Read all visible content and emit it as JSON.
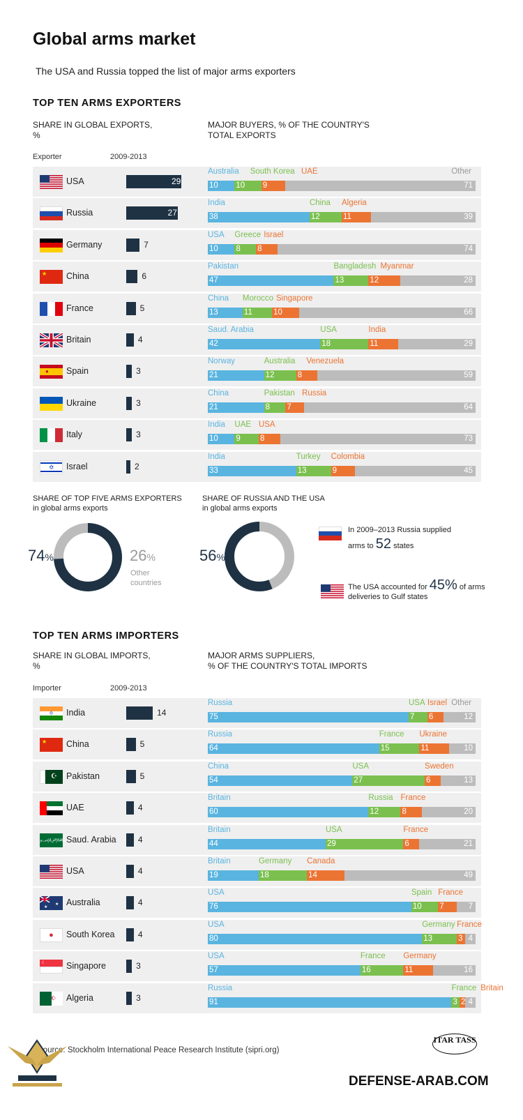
{
  "header": {
    "title": "Global arms market",
    "subtitle": "The USA and Russia topped the list of major arms exporters"
  },
  "exporters": {
    "section_title": "TOP TEN ARMS EXPORTERS",
    "share_head": "SHARE IN GLOBAL EXPORTS,\n%",
    "buyers_head": "MAJOR BUYERS, % OF THE COUNTRY'S\nTOTAL EXPORTS",
    "col_country": "Exporter",
    "col_period": "2009-2013",
    "other_label": "Other",
    "rows": [
      {
        "country": "USA",
        "share": 29,
        "parts": [
          {
            "name": "Australia",
            "v": 10
          },
          {
            "name": "South Korea",
            "v": 10
          },
          {
            "name": "UAE",
            "v": 9
          }
        ],
        "other": 71
      },
      {
        "country": "Russia",
        "share": 27,
        "parts": [
          {
            "name": "India",
            "v": 38
          },
          {
            "name": "China",
            "v": 12
          },
          {
            "name": "Algeria",
            "v": 11
          }
        ],
        "other": 39
      },
      {
        "country": "Germany",
        "share": 7,
        "parts": [
          {
            "name": "USA",
            "v": 10
          },
          {
            "name": "Greece",
            "v": 8
          },
          {
            "name": "Israel",
            "v": 8
          }
        ],
        "other": 74
      },
      {
        "country": "China",
        "share": 6,
        "parts": [
          {
            "name": "Pakistan",
            "v": 47
          },
          {
            "name": "Bangladesh",
            "v": 13
          },
          {
            "name": "Myanmar",
            "v": 12
          }
        ],
        "other": 28
      },
      {
        "country": "France",
        "share": 5,
        "parts": [
          {
            "name": "China",
            "v": 13
          },
          {
            "name": "Morocco",
            "v": 11
          },
          {
            "name": "Singapore",
            "v": 10
          }
        ],
        "other": 66
      },
      {
        "country": "Britain",
        "share": 4,
        "parts": [
          {
            "name": "Saud. Arabia",
            "v": 42
          },
          {
            "name": "USA",
            "v": 18
          },
          {
            "name": "India",
            "v": 11
          }
        ],
        "other": 29
      },
      {
        "country": "Spain",
        "share": 3,
        "parts": [
          {
            "name": "Norway",
            "v": 21
          },
          {
            "name": "Australia",
            "v": 12
          },
          {
            "name": "Venezuela",
            "v": 8
          }
        ],
        "other": 59
      },
      {
        "country": "Ukraine",
        "share": 3,
        "parts": [
          {
            "name": "China",
            "v": 21
          },
          {
            "name": "Pakistan",
            "v": 8
          },
          {
            "name": "Russia",
            "v": 7
          }
        ],
        "other": 64
      },
      {
        "country": "Italy",
        "share": 3,
        "parts": [
          {
            "name": "India",
            "v": 10
          },
          {
            "name": "UAE",
            "v": 9
          },
          {
            "name": "USA",
            "v": 8
          }
        ],
        "other": 73
      },
      {
        "country": "Israel",
        "share": 2,
        "parts": [
          {
            "name": "India",
            "v": 33
          },
          {
            "name": "Turkey",
            "v": 13
          },
          {
            "name": "Colombia",
            "v": 9
          }
        ],
        "other": 45
      }
    ]
  },
  "donuts": {
    "top5_title": "SHARE OF TOP FIVE ARMS EXPORTERS\nin global arms exports",
    "top5_value": "74",
    "top5_other": "26",
    "top5_other_label": "Other\ncountries",
    "ru_us_title": "SHARE OF RUSSIA AND THE USA\nin global arms exports",
    "ru_us_value": "56",
    "pct": "%",
    "russia_note_a": "In 2009–2013 Russia supplied",
    "russia_note_b": "arms to",
    "russia_num": "52",
    "russia_note_c": "states",
    "usa_note_a": "The USA accounted for",
    "usa_num": "45%",
    "usa_note_b": "of arms",
    "usa_note_c": "deliveries to Gulf states"
  },
  "importers": {
    "section_title": "TOP TEN ARMS IMPORTERS",
    "share_head": "SHARE IN GLOBAL IMPORTS,\n%",
    "suppliers_head": "MAJOR ARMS SUPPLIERS,\n% OF THE COUNTRY'S TOTAL IMPORTS",
    "col_country": "Importer",
    "col_period": "2009-2013",
    "other_label": "Other",
    "rows": [
      {
        "country": "India",
        "share": 14,
        "parts": [
          {
            "name": "Russia",
            "v": 75
          },
          {
            "name": "USA",
            "v": 7
          },
          {
            "name": "Israel",
            "v": 6
          }
        ],
        "other": 12
      },
      {
        "country": "China",
        "share": 5,
        "parts": [
          {
            "name": "Russia",
            "v": 64
          },
          {
            "name": "France",
            "v": 15
          },
          {
            "name": "Ukraine",
            "v": 11
          }
        ],
        "other": 10
      },
      {
        "country": "Pakistan",
        "share": 5,
        "parts": [
          {
            "name": "China",
            "v": 54
          },
          {
            "name": "USA",
            "v": 27
          },
          {
            "name": "Sweden",
            "v": 6
          }
        ],
        "other": 13
      },
      {
        "country": "UAE",
        "share": 4,
        "parts": [
          {
            "name": "Britain",
            "v": 60
          },
          {
            "name": "Russia",
            "v": 12
          },
          {
            "name": "France",
            "v": 8
          }
        ],
        "other": 20
      },
      {
        "country": "Saud. Arabia",
        "share": 4,
        "parts": [
          {
            "name": "Britain",
            "v": 44
          },
          {
            "name": "USA",
            "v": 29
          },
          {
            "name": "France",
            "v": 6
          }
        ],
        "other": 21
      },
      {
        "country": "USA",
        "share": 4,
        "parts": [
          {
            "name": "Britain",
            "v": 19
          },
          {
            "name": "Germany",
            "v": 18
          },
          {
            "name": "Canada",
            "v": 14
          }
        ],
        "other": 49
      },
      {
        "country": "Australia",
        "share": 4,
        "parts": [
          {
            "name": "USA",
            "v": 76
          },
          {
            "name": "Spain",
            "v": 10
          },
          {
            "name": "France",
            "v": 7
          }
        ],
        "other": 7
      },
      {
        "country": "South Korea",
        "share": 4,
        "parts": [
          {
            "name": "USA",
            "v": 80
          },
          {
            "name": "Germany",
            "v": 13
          },
          {
            "name": "France",
            "v": 3
          }
        ],
        "other": 4
      },
      {
        "country": "Singapore",
        "share": 3,
        "parts": [
          {
            "name": "USA",
            "v": 57
          },
          {
            "name": "France",
            "v": 16
          },
          {
            "name": "Germany",
            "v": 11
          }
        ],
        "other": 16
      },
      {
        "country": "Algeria",
        "share": 3,
        "parts": [
          {
            "name": "Russia",
            "v": 91
          },
          {
            "name": "France",
            "v": 3
          },
          {
            "name": "Britain",
            "v": 2
          }
        ],
        "other": 4
      }
    ]
  },
  "footer": {
    "source": "Source: Stockholm International Peace Research Institute (sipri.org)",
    "agency": "ITAR TASS",
    "site": "DEFENSE-ARAB.COM"
  },
  "colors": {
    "bar": "#1f3244",
    "blue": "#5ab4e0",
    "green": "#7bc04f",
    "orange": "#ec7433",
    "other": "#bcbcbc"
  },
  "chart_data": [
    {
      "type": "bar",
      "title": "TOP TEN ARMS EXPORTERS",
      "categories": [
        "USA",
        "Russia",
        "Germany",
        "China",
        "France",
        "Britain",
        "Spain",
        "Ukraine",
        "Italy",
        "Israel"
      ],
      "values": [
        29,
        27,
        7,
        6,
        5,
        4,
        3,
        3,
        3,
        2
      ]
    },
    {
      "type": "bar",
      "title": "TOP TEN ARMS IMPORTERS",
      "categories": [
        "India",
        "China",
        "Pakistan",
        "UAE",
        "Saud. Arabia",
        "USA",
        "Australia",
        "South Korea",
        "Singapore",
        "Algeria"
      ],
      "values": [
        14,
        5,
        5,
        4,
        4,
        4,
        4,
        4,
        3,
        3
      ]
    },
    {
      "type": "pie",
      "title": "SHARE OF TOP FIVE ARMS EXPORTERS",
      "categories": [
        "Top five",
        "Other countries"
      ],
      "values": [
        74,
        26
      ]
    },
    {
      "type": "pie",
      "title": "SHARE OF RUSSIA AND THE USA",
      "categories": [
        "Russia and the USA",
        "Other"
      ],
      "values": [
        56,
        44
      ]
    }
  ]
}
